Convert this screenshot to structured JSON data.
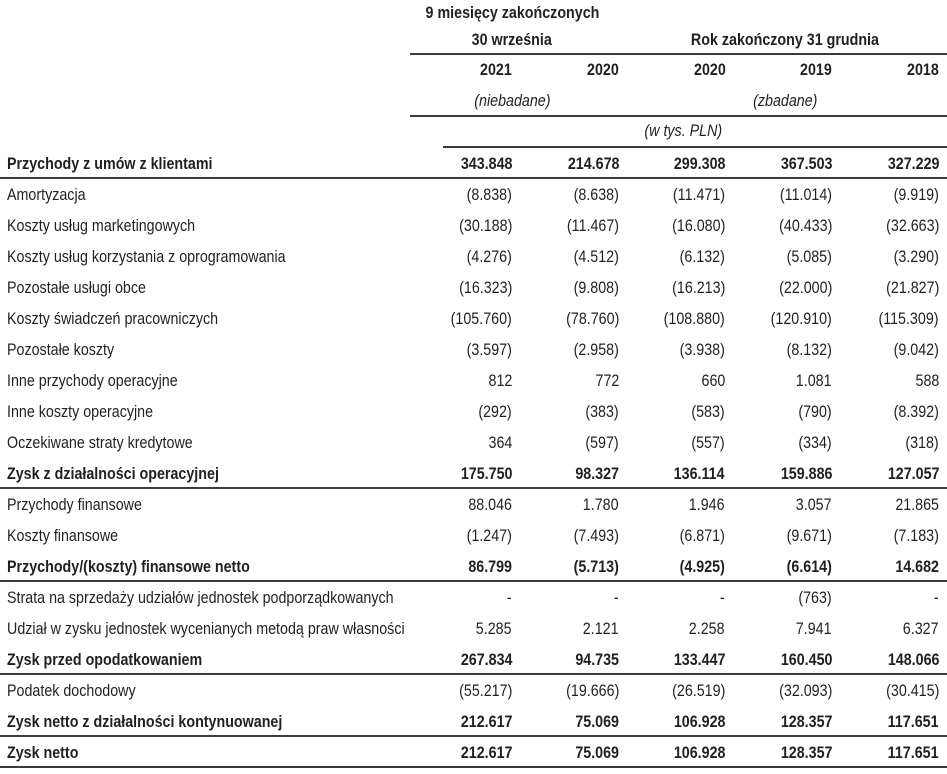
{
  "header": {
    "group1_line1": "9 miesięcy zakończonych",
    "group1_line2": "30 września",
    "group2": "Rok zakończony 31 grudnia",
    "years": [
      "2021",
      "2020",
      "2020",
      "2019",
      "2018"
    ],
    "unaudited": "(niebadane)",
    "audited": "(zbadane)",
    "unit": "(w tys. PLN)"
  },
  "rows": [
    {
      "label": "Przychody z umów z klientami",
      "bold": true,
      "rule": true,
      "values": [
        "343.848",
        "214.678",
        "299.308",
        "367.503",
        "327.229"
      ]
    },
    {
      "label": "Amortyzacja",
      "values": [
        "(8.838)",
        "(8.638)",
        "(11.471)",
        "(11.014)",
        "(9.919)"
      ]
    },
    {
      "label": "Koszty usług marketingowych",
      "values": [
        "(30.188)",
        "(11.467)",
        "(16.080)",
        "(40.433)",
        "(32.663)"
      ]
    },
    {
      "label": "Koszty usług korzystania z oprogramowania",
      "values": [
        "(4.276)",
        "(4.512)",
        "(6.132)",
        "(5.085)",
        "(3.290)"
      ]
    },
    {
      "label": "Pozostałe usługi obce",
      "values": [
        "(16.323)",
        "(9.808)",
        "(16.213)",
        "(22.000)",
        "(21.827)"
      ]
    },
    {
      "label": "Koszty świadczeń pracowniczych",
      "values": [
        "(105.760)",
        "(78.760)",
        "(108.880)",
        "(120.910)",
        "(115.309)"
      ]
    },
    {
      "label": "Pozostałe koszty",
      "values": [
        "(3.597)",
        "(2.958)",
        "(3.938)",
        "(8.132)",
        "(9.042)"
      ]
    },
    {
      "label": "Inne przychody operacyjne",
      "values": [
        "812",
        "772",
        "660",
        "1.081",
        "588"
      ]
    },
    {
      "label": "Inne koszty operacyjne",
      "values": [
        "(292)",
        "(383)",
        "(583)",
        "(790)",
        "(8.392)"
      ]
    },
    {
      "label": "Oczekiwane straty kredytowe",
      "values": [
        "364",
        "(597)",
        "(557)",
        "(334)",
        "(318)"
      ]
    },
    {
      "label": "Zysk z działalności operacyjnej",
      "bold": true,
      "rule": true,
      "values": [
        "175.750",
        "98.327",
        "136.114",
        "159.886",
        "127.057"
      ]
    },
    {
      "label": "Przychody finansowe",
      "values": [
        "88.046",
        "1.780",
        "1.946",
        "3.057",
        "21.865"
      ]
    },
    {
      "label": "Koszty finansowe",
      "values": [
        "(1.247)",
        "(7.493)",
        "(6.871)",
        "(9.671)",
        "(7.183)"
      ]
    },
    {
      "label": "Przychody/(koszty) finansowe netto",
      "bold": true,
      "rule": true,
      "values": [
        "86.799",
        "(5.713)",
        "(4.925)",
        "(6.614)",
        "14.682"
      ]
    },
    {
      "label": "Strata na sprzedaży udziałów jednostek podporządkowanych",
      "values": [
        "-",
        "-",
        "-",
        "(763)",
        "-"
      ]
    },
    {
      "label": "Udział w zysku jednostek wycenianych metodą praw własności",
      "values": [
        "5.285",
        "2.121",
        "2.258",
        "7.941",
        "6.327"
      ]
    },
    {
      "label": "Zysk przed opodatkowaniem",
      "bold": true,
      "rule": true,
      "values": [
        "267.834",
        "94.735",
        "133.447",
        "160.450",
        "148.066"
      ]
    },
    {
      "label": "Podatek dochodowy",
      "values": [
        "(55.217)",
        "(19.666)",
        "(26.519)",
        "(32.093)",
        "(30.415)"
      ]
    },
    {
      "label": "Zysk netto z działalności kontynuowanej",
      "bold": true,
      "rule": true,
      "values": [
        "212.617",
        "75.069",
        "106.928",
        "128.357",
        "117.651"
      ]
    },
    {
      "label": "Zysk netto",
      "bold": true,
      "rule": true,
      "values": [
        "212.617",
        "75.069",
        "106.928",
        "128.357",
        "117.651"
      ]
    }
  ]
}
